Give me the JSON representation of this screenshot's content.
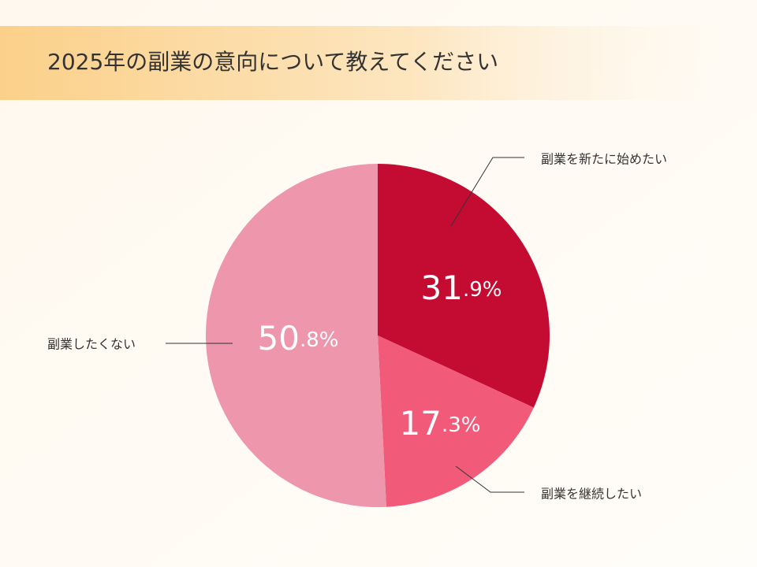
{
  "chart_data": {
    "type": "pie",
    "title": "2025年の副業の意向について教えてください",
    "categories": [
      "副業を新たに始めたい",
      "副業を継続したい",
      "副業したくない"
    ],
    "values": [
      31.9,
      17.3,
      50.8
    ],
    "value_labels": [
      "31.9%",
      "17.3%",
      "50.8%"
    ],
    "colors": [
      "#c40c32",
      "#f25a7a",
      "#ee96ab"
    ]
  }
}
